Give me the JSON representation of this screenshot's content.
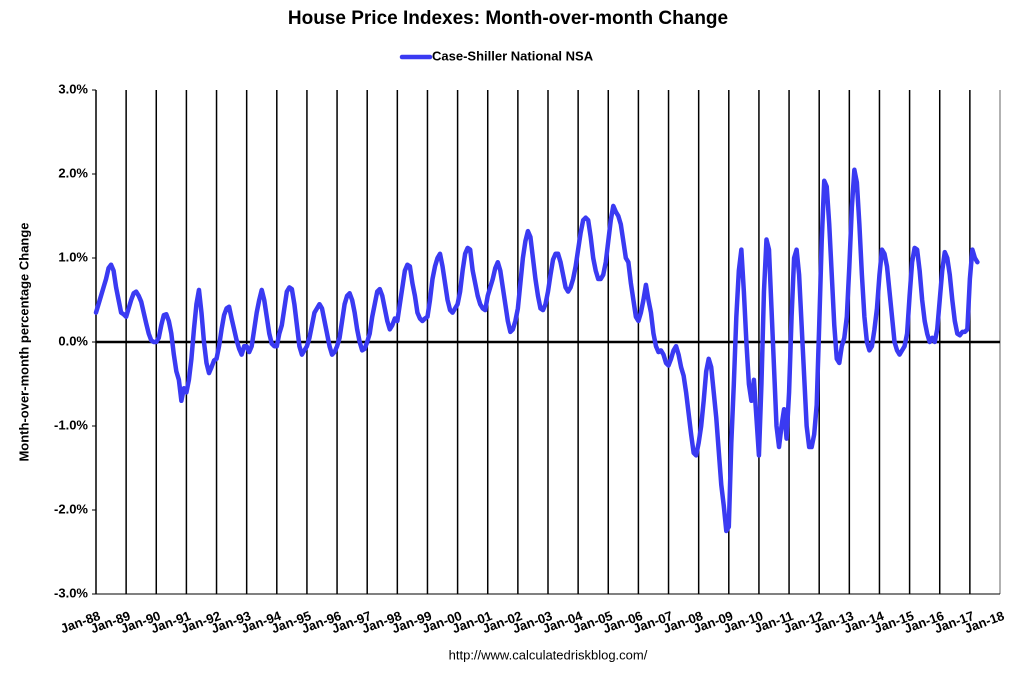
{
  "chart_data": {
    "type": "line",
    "title": "House Price Indexes: Month-over-month Change",
    "y_label": "Month-over-month percentage Change",
    "source": "http://www.calculatedriskblog.com/",
    "categories": [
      "Jan-88",
      null,
      null,
      null,
      null,
      null,
      null,
      null,
      null,
      null,
      null,
      null,
      "Jan-89",
      null,
      null,
      null,
      null,
      null,
      null,
      null,
      null,
      null,
      null,
      null,
      "Jan-90",
      null,
      null,
      null,
      null,
      null,
      null,
      null,
      null,
      null,
      null,
      null,
      "Jan-91",
      null,
      null,
      null,
      null,
      null,
      null,
      null,
      null,
      null,
      null,
      null,
      "Jan-92",
      null,
      null,
      null,
      null,
      null,
      null,
      null,
      null,
      null,
      null,
      null,
      "Jan-93",
      null,
      null,
      null,
      null,
      null,
      null,
      null,
      null,
      null,
      null,
      null,
      "Jan-94",
      null,
      null,
      null,
      null,
      null,
      null,
      null,
      null,
      null,
      null,
      null,
      "Jan-95",
      null,
      null,
      null,
      null,
      null,
      null,
      null,
      null,
      null,
      null,
      null,
      "Jan-96",
      null,
      null,
      null,
      null,
      null,
      null,
      null,
      null,
      null,
      null,
      null,
      "Jan-97",
      null,
      null,
      null,
      null,
      null,
      null,
      null,
      null,
      null,
      null,
      null,
      "Jan-98",
      null,
      null,
      null,
      null,
      null,
      null,
      null,
      null,
      null,
      null,
      null,
      "Jan-99",
      null,
      null,
      null,
      null,
      null,
      null,
      null,
      null,
      null,
      null,
      null,
      "Jan-00",
      null,
      null,
      null,
      null,
      null,
      null,
      null,
      null,
      null,
      null,
      null,
      "Jan-01",
      null,
      null,
      null,
      null,
      null,
      null,
      null,
      null,
      null,
      null,
      null,
      "Jan-02",
      null,
      null,
      null,
      null,
      null,
      null,
      null,
      null,
      null,
      null,
      null,
      "Jan-03",
      null,
      null,
      null,
      null,
      null,
      null,
      null,
      null,
      null,
      null,
      null,
      "Jan-04",
      null,
      null,
      null,
      null,
      null,
      null,
      null,
      null,
      null,
      null,
      null,
      "Jan-05",
      null,
      null,
      null,
      null,
      null,
      null,
      null,
      null,
      null,
      null,
      null,
      "Jan-06",
      null,
      null,
      null,
      null,
      null,
      null,
      null,
      null,
      null,
      null,
      null,
      "Jan-07",
      null,
      null,
      null,
      null,
      null,
      null,
      null,
      null,
      null,
      null,
      null,
      "Jan-08",
      null,
      null,
      null,
      null,
      null,
      null,
      null,
      null,
      null,
      null,
      null,
      "Jan-09",
      null,
      null,
      null,
      null,
      null,
      null,
      null,
      null,
      null,
      null,
      null,
      "Jan-10",
      null,
      null,
      null,
      null,
      null,
      null,
      null,
      null,
      null,
      null,
      null,
      "Jan-11",
      null,
      null,
      null,
      null,
      null,
      null,
      null,
      null,
      null,
      null,
      null,
      "Jan-12",
      null,
      null,
      null,
      null,
      null,
      null,
      null,
      null,
      null,
      null,
      null,
      "Jan-13",
      null,
      null,
      null,
      null,
      null,
      null,
      null,
      null,
      null,
      null,
      null,
      "Jan-14",
      null,
      null,
      null,
      null,
      null,
      null,
      null,
      null,
      null,
      null,
      null,
      "Jan-15",
      null,
      null,
      null,
      null,
      null,
      null,
      null,
      null,
      null,
      null,
      null,
      "Jan-16",
      null,
      null,
      null,
      null,
      null,
      null,
      null,
      null,
      null,
      null,
      null,
      "Jan-17",
      null,
      null,
      null,
      null,
      null,
      null,
      null,
      null,
      null,
      null,
      null,
      "Jan-18"
    ],
    "series": [
      {
        "name": "Case-Shiller National NSA",
        "color": "#3a3af2",
        "values": [
          0.35,
          0.45,
          0.55,
          0.65,
          0.75,
          0.88,
          0.92,
          0.85,
          0.65,
          0.5,
          0.35,
          0.33,
          0.3,
          0.4,
          0.5,
          0.58,
          0.6,
          0.55,
          0.48,
          0.35,
          0.22,
          0.1,
          0.02,
          0.0,
          0.0,
          0.05,
          0.2,
          0.32,
          0.33,
          0.25,
          0.1,
          -0.15,
          -0.35,
          -0.45,
          -0.7,
          -0.55,
          -0.6,
          -0.45,
          -0.2,
          0.15,
          0.45,
          0.62,
          0.35,
          0.0,
          -0.25,
          -0.37,
          -0.3,
          -0.22,
          -0.2,
          -0.05,
          0.15,
          0.32,
          0.4,
          0.42,
          0.28,
          0.15,
          0.02,
          -0.08,
          -0.15,
          -0.05,
          -0.05,
          -0.12,
          -0.05,
          0.15,
          0.35,
          0.5,
          0.62,
          0.5,
          0.3,
          0.1,
          -0.02,
          -0.05,
          -0.05,
          0.1,
          0.2,
          0.4,
          0.6,
          0.65,
          0.63,
          0.45,
          0.2,
          -0.05,
          -0.15,
          -0.1,
          -0.05,
          0.05,
          0.2,
          0.35,
          0.4,
          0.45,
          0.4,
          0.25,
          0.1,
          -0.05,
          -0.15,
          -0.12,
          -0.05,
          0.05,
          0.25,
          0.45,
          0.55,
          0.58,
          0.5,
          0.35,
          0.15,
          0.0,
          -0.1,
          -0.08,
          0.0,
          0.1,
          0.3,
          0.45,
          0.6,
          0.63,
          0.55,
          0.4,
          0.25,
          0.15,
          0.2,
          0.28,
          0.25,
          0.45,
          0.65,
          0.85,
          0.92,
          0.9,
          0.7,
          0.55,
          0.35,
          0.28,
          0.25,
          0.28,
          0.3,
          0.5,
          0.75,
          0.9,
          1.0,
          1.05,
          0.9,
          0.7,
          0.5,
          0.38,
          0.35,
          0.4,
          0.45,
          0.6,
          0.85,
          1.05,
          1.12,
          1.1,
          0.85,
          0.7,
          0.55,
          0.45,
          0.4,
          0.38,
          0.55,
          0.65,
          0.75,
          0.88,
          0.95,
          0.85,
          0.65,
          0.45,
          0.25,
          0.12,
          0.15,
          0.25,
          0.4,
          0.7,
          1.0,
          1.2,
          1.32,
          1.25,
          1.0,
          0.75,
          0.55,
          0.4,
          0.38,
          0.45,
          0.6,
          0.8,
          0.98,
          1.05,
          1.05,
          0.95,
          0.8,
          0.65,
          0.6,
          0.65,
          0.75,
          0.9,
          1.1,
          1.3,
          1.45,
          1.48,
          1.45,
          1.25,
          1.0,
          0.85,
          0.75,
          0.75,
          0.8,
          0.95,
          1.2,
          1.45,
          1.62,
          1.55,
          1.5,
          1.4,
          1.2,
          1.0,
          0.95,
          0.7,
          0.5,
          0.3,
          0.25,
          0.35,
          0.5,
          0.68,
          0.5,
          0.35,
          0.1,
          -0.05,
          -0.12,
          -0.1,
          -0.15,
          -0.25,
          -0.28,
          -0.2,
          -0.1,
          -0.05,
          -0.15,
          -0.3,
          -0.4,
          -0.6,
          -0.85,
          -1.1,
          -1.32,
          -1.35,
          -1.2,
          -1.0,
          -0.7,
          -0.35,
          -0.2,
          -0.3,
          -0.6,
          -0.9,
          -1.3,
          -1.7,
          -1.95,
          -2.25,
          -2.2,
          -1.2,
          -0.5,
          0.3,
          0.85,
          1.1,
          0.6,
          0.0,
          -0.5,
          -0.7,
          -0.45,
          -0.9,
          -1.35,
          -0.5,
          0.6,
          1.22,
          1.1,
          0.4,
          -0.3,
          -1.0,
          -1.25,
          -1.0,
          -0.8,
          -1.15,
          -0.6,
          0.3,
          1.0,
          1.1,
          0.8,
          0.2,
          -0.4,
          -1.0,
          -1.25,
          -1.25,
          -1.1,
          -0.75,
          0.2,
          1.2,
          1.92,
          1.85,
          1.4,
          0.8,
          0.2,
          -0.2,
          -0.25,
          -0.05,
          0.05,
          0.3,
          0.9,
          1.6,
          2.05,
          1.9,
          1.4,
          0.8,
          0.3,
          0.0,
          -0.1,
          -0.05,
          0.15,
          0.4,
          0.8,
          1.1,
          1.05,
          0.9,
          0.6,
          0.3,
          0.0,
          -0.1,
          -0.15,
          -0.1,
          -0.05,
          0.1,
          0.55,
          0.95,
          1.12,
          1.1,
          0.85,
          0.5,
          0.25,
          0.1,
          0.0,
          0.05,
          0.0,
          0.15,
          0.5,
          0.85,
          1.07,
          1.0,
          0.8,
          0.5,
          0.25,
          0.1,
          0.08,
          0.12,
          0.12,
          0.15,
          0.75,
          1.1,
          1.0,
          0.95,
          null,
          null,
          null,
          null,
          null,
          null,
          null,
          null,
          null
        ]
      }
    ],
    "ylim": [
      -3,
      3
    ],
    "yticks": [
      {
        "value": -3,
        "label": "-3.0%"
      },
      {
        "value": -2,
        "label": "-2.0%"
      },
      {
        "value": -1,
        "label": "-1.0%"
      },
      {
        "value": 0,
        "label": "0.0%"
      },
      {
        "value": 1,
        "label": "1.0%"
      },
      {
        "value": 2,
        "label": "2.0%"
      },
      {
        "value": 3,
        "label": "3.0%"
      }
    ],
    "grid": "x",
    "legend": "top"
  }
}
